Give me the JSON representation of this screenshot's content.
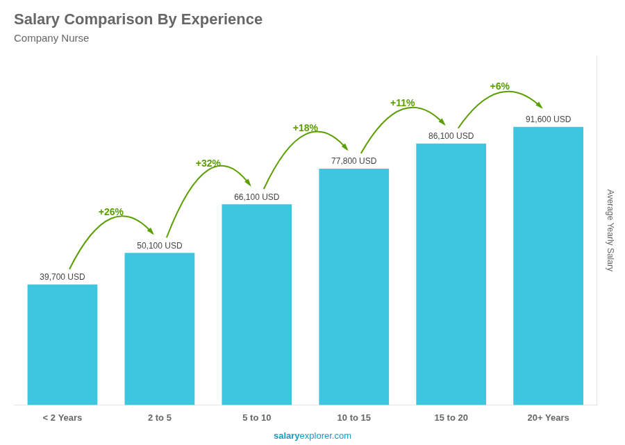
{
  "chart_data": {
    "type": "bar",
    "title": "Salary Comparison By Experience",
    "subtitle": "Company Nurse",
    "categories": [
      "< 2 Years",
      "2 to 5",
      "5 to 10",
      "10 to 15",
      "15 to 20",
      "20+ Years"
    ],
    "values": [
      39700,
      50100,
      66100,
      77800,
      86100,
      91600
    ],
    "value_labels": [
      "39,700 USD",
      "50,100 USD",
      "66,100 USD",
      "77,800 USD",
      "86,100 USD",
      "91,600 USD"
    ],
    "data_labels": true,
    "annotations": [
      "+26%",
      "+32%",
      "+18%",
      "+11%",
      "+6%"
    ],
    "ylabel": "Average Yearly Salary",
    "footer": [
      "salary",
      "explorer.com"
    ],
    "color": "#3ec6e0",
    "ylim": [
      0,
      115000
    ],
    "grid": false,
    "tick_labels": "x"
  }
}
